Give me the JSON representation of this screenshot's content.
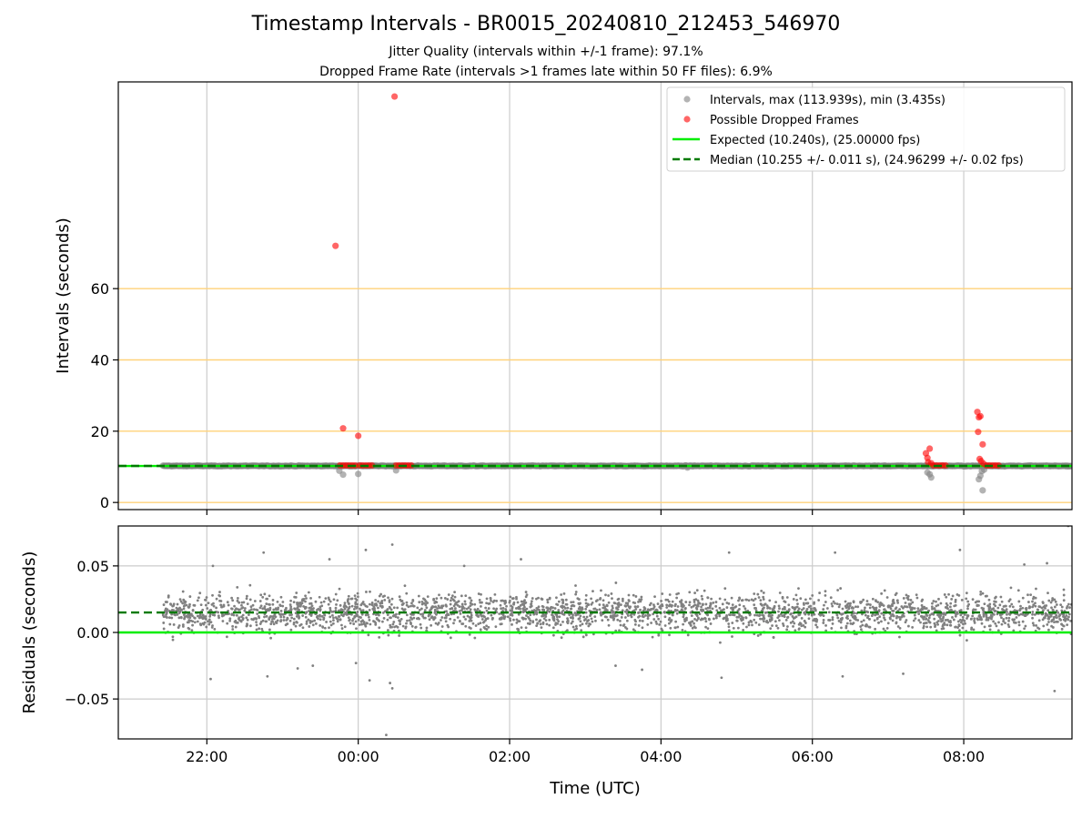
{
  "figure": {
    "title": "Timestamp Intervals - BR0015_20240810_212453_546970",
    "subtitle_1": "Jitter Quality (intervals within +/-1 frame): 97.1%",
    "subtitle_2": "Dropped Frame Rate (intervals >1 frames late within 50 FF files): 6.9%",
    "xlabel": "Time (UTC)"
  },
  "colors": {
    "intervals": "#808080",
    "dropped": "#ff0000",
    "expected": "#00ee00",
    "median": "#007a00",
    "threshold": "#ffd27a",
    "grid": "#cccccc"
  },
  "chart_data": [
    {
      "type": "scatter",
      "panel": "top",
      "ylabel": "Intervals (seconds)",
      "x_unit": "hours since 22:00 UTC (x tick labels are clock times)",
      "xlim": [
        -1.17,
        11.43
      ],
      "ylim": [
        -2,
        118
      ],
      "xticks": [
        0,
        2,
        4,
        6,
        8,
        10
      ],
      "xtick_labels": [
        "22:00",
        "00:00",
        "02:00",
        "04:00",
        "06:00",
        "08:00"
      ],
      "yticks": [
        0,
        20,
        40,
        60
      ],
      "ytick_labels": [
        "0",
        "20",
        "40",
        "60"
      ],
      "threshold_lines": [
        0,
        20,
        40,
        60
      ],
      "legend_position": "top-right",
      "legend": [
        {
          "label": "Intervals, max (113.939s), min (3.435s)",
          "kind": "dot-grey"
        },
        {
          "label": "Possible Dropped Frames",
          "kind": "dot-red"
        },
        {
          "label": "Expected (10.240s), (25.00000 fps)",
          "kind": "line-green"
        },
        {
          "label": "Median (10.255 +/- 0.011 s), (24.96299 +/- 0.02 fps)",
          "kind": "dash-darkgreen"
        }
      ],
      "series": [
        {
          "name": "Intervals",
          "span": [
            -0.58,
            11.43
          ],
          "baseline": 10.255,
          "outliers": [
            [
              1.75,
              8.9
            ],
            [
              1.8,
              7.8
            ],
            [
              2.0,
              8.0
            ],
            [
              2.5,
              9.0
            ],
            [
              6.35,
              9.8
            ],
            [
              9.52,
              8.4
            ],
            [
              9.55,
              7.9
            ],
            [
              9.57,
              7.0
            ],
            [
              10.22,
              7.5
            ],
            [
              10.2,
              6.5
            ],
            [
              10.25,
              3.4
            ],
            [
              10.24,
              8.8
            ],
            [
              10.27,
              9.2
            ]
          ]
        },
        {
          "name": "Possible Dropped Frames",
          "points": [
            [
              1.7,
              72.0
            ],
            [
              1.8,
              20.8
            ],
            [
              2.0,
              18.7
            ],
            [
              2.48,
              113.9
            ],
            [
              1.76,
              10.4
            ],
            [
              1.8,
              10.4
            ],
            [
              1.84,
              10.4
            ],
            [
              1.88,
              10.4
            ],
            [
              1.92,
              10.4
            ],
            [
              1.96,
              10.4
            ],
            [
              2.02,
              10.4
            ],
            [
              2.06,
              10.4
            ],
            [
              2.1,
              10.4
            ],
            [
              2.14,
              10.4
            ],
            [
              2.18,
              10.4
            ],
            [
              2.5,
              10.4
            ],
            [
              2.54,
              10.4
            ],
            [
              2.58,
              10.4
            ],
            [
              2.62,
              10.4
            ],
            [
              2.66,
              10.4
            ],
            [
              2.7,
              10.4
            ],
            [
              9.5,
              13.8
            ],
            [
              9.52,
              12.5
            ],
            [
              9.55,
              15.1
            ],
            [
              9.53,
              11.3
            ],
            [
              9.57,
              11.0
            ],
            [
              9.6,
              10.4
            ],
            [
              9.64,
              10.4
            ],
            [
              9.68,
              10.4
            ],
            [
              9.72,
              10.4
            ],
            [
              9.76,
              10.4
            ],
            [
              10.18,
              25.4
            ],
            [
              10.2,
              23.9
            ],
            [
              10.22,
              24.2
            ],
            [
              10.19,
              19.8
            ],
            [
              10.25,
              16.3
            ],
            [
              10.21,
              12.2
            ],
            [
              10.23,
              11.6
            ],
            [
              10.26,
              10.9
            ],
            [
              10.3,
              10.4
            ],
            [
              10.34,
              10.4
            ],
            [
              10.38,
              10.4
            ],
            [
              10.42,
              10.4
            ],
            [
              10.46,
              10.4
            ]
          ]
        },
        {
          "name": "Expected",
          "y": 10.24
        },
        {
          "name": "Median",
          "y": 10.255
        }
      ]
    },
    {
      "type": "scatter",
      "panel": "bottom",
      "ylabel": "Residuals (seconds)",
      "xlabel": "Time (UTC)",
      "xlim": [
        -1.17,
        11.43
      ],
      "ylim": [
        -0.08,
        0.08
      ],
      "xticks": [
        0,
        2,
        4,
        6,
        8,
        10
      ],
      "xtick_labels": [
        "22:00",
        "00:00",
        "02:00",
        "04:00",
        "06:00",
        "08:00"
      ],
      "yticks": [
        0.05,
        0.0,
        -0.05
      ],
      "ytick_labels": [
        "0.05",
        "0.00",
        "−0.05"
      ],
      "series": [
        {
          "name": "Residuals",
          "span": [
            -0.58,
            11.43
          ],
          "center": 0.015,
          "spread": 0.01,
          "count": 2800,
          "extremes": [
            [
              0.05,
              -0.035
            ],
            [
              0.8,
              -0.033
            ],
            [
              1.2,
              -0.027
            ],
            [
              1.4,
              -0.025
            ],
            [
              1.97,
              -0.023
            ],
            [
              2.15,
              -0.036
            ],
            [
              2.42,
              -0.038
            ],
            [
              2.45,
              -0.042
            ],
            [
              2.37,
              -0.077
            ],
            [
              2.45,
              0.066
            ],
            [
              2.1,
              0.062
            ],
            [
              1.62,
              0.055
            ],
            [
              0.75,
              0.06
            ],
            [
              5.4,
              -0.025
            ],
            [
              5.75,
              -0.028
            ],
            [
              6.8,
              -0.034
            ],
            [
              6.9,
              0.06
            ],
            [
              8.4,
              -0.033
            ],
            [
              9.2,
              -0.031
            ],
            [
              9.95,
              0.062
            ],
            [
              11.38,
              0.08
            ],
            [
              11.2,
              -0.044
            ],
            [
              11.1,
              0.052
            ],
            [
              8.3,
              0.06
            ],
            [
              4.15,
              0.055
            ],
            [
              3.4,
              0.05
            ],
            [
              10.8,
              0.051
            ],
            [
              0.08,
              0.05
            ]
          ]
        },
        {
          "name": "Expected",
          "y": 0.0
        },
        {
          "name": "Median",
          "y": 0.015
        }
      ]
    }
  ]
}
